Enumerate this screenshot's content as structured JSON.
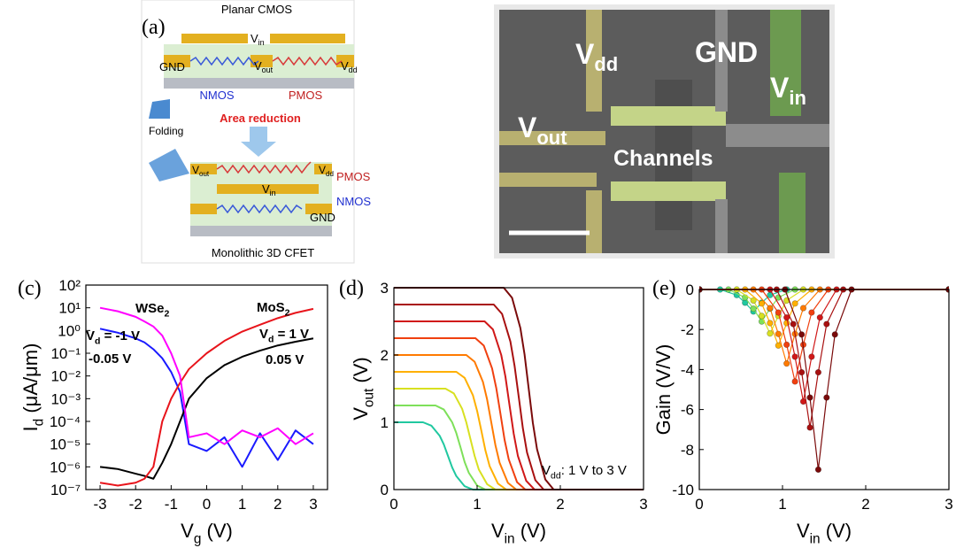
{
  "panel_a": {
    "label": "(a)",
    "title": "Planar CMOS",
    "planar": {
      "vin": [
        "V",
        "in"
      ],
      "gnd": "GND",
      "vout": [
        "V",
        "out"
      ],
      "vdd": [
        "V",
        "dd"
      ],
      "nmos": "NMOS",
      "pmos": "PMOS"
    },
    "arrow_label": "Area reduction",
    "folding": "Folding",
    "cfet": {
      "vout": [
        "V",
        "out"
      ],
      "vdd": [
        "V",
        "dd"
      ],
      "pmos": "PMOS",
      "vin": [
        "V",
        "in"
      ],
      "nmos": "NMOS",
      "gnd": "GND"
    },
    "caption": "Monolithic 3D CFET"
  },
  "panel_b": {
    "vdd": [
      "V",
      "dd"
    ],
    "gnd": "GND",
    "vin": [
      "V",
      "in"
    ],
    "vout": [
      "V",
      "out"
    ],
    "channels": "Channels"
  },
  "chart_data": [
    {
      "type": "line",
      "label": "(c)",
      "xlabel": [
        "V",
        "g",
        " (V)"
      ],
      "ylabel": [
        "I",
        "d",
        " (μA/μm)"
      ],
      "yscale": "log",
      "xlim": [
        -3.4,
        3.4
      ],
      "ylim": [
        1e-07,
        100
      ],
      "xticks": [
        -3,
        -2,
        -1,
        0,
        1,
        2,
        3
      ],
      "yticks": [
        {
          "value": 1e-07,
          "label": "10⁻⁷"
        },
        {
          "value": 1e-06,
          "label": "10⁻⁶"
        },
        {
          "value": 1e-05,
          "label": "10⁻⁵"
        },
        {
          "value": 0.0001,
          "label": "10⁻⁴"
        },
        {
          "value": 0.001,
          "label": "10⁻³"
        },
        {
          "value": 0.01,
          "label": "10⁻²"
        },
        {
          "value": 0.1,
          "label": "10⁻¹"
        },
        {
          "value": 1,
          "label": "10⁰"
        },
        {
          "value": 10,
          "label": "10¹"
        },
        {
          "value": 100,
          "label": "10²"
        }
      ],
      "x": [
        -3,
        -2.5,
        -2,
        -1.75,
        -1.5,
        -1.25,
        -1,
        -0.75,
        -0.5,
        0,
        0.5,
        1,
        1.5,
        2,
        2.5,
        3
      ],
      "series": [
        {
          "color": "#1a1aff",
          "values": [
            1.2,
            0.8,
            0.45,
            0.3,
            0.15,
            0.06,
            0.015,
            0.002,
            1e-05,
            5e-06,
            2e-05,
            1e-06,
            3e-05,
            2e-06,
            4e-05,
            1e-05
          ]
        },
        {
          "color": "#000000",
          "values": [
            1e-06,
            8e-07,
            5e-07,
            4e-07,
            3e-07,
            1.5e-06,
            1e-05,
            0.0001,
            0.001,
            0.008,
            0.03,
            0.07,
            0.13,
            0.22,
            0.32,
            0.45
          ]
        },
        {
          "color": "#e8141b",
          "values": [
            2e-07,
            1.5e-07,
            2e-07,
            3e-07,
            1e-06,
            0.0001,
            0.001,
            0.005,
            0.02,
            0.1,
            0.35,
            0.9,
            1.8,
            3.5,
            6,
            9
          ]
        },
        {
          "color": "#ff00ff",
          "values": [
            10,
            7,
            4,
            2.5,
            1.5,
            0.6,
            0.1,
            0.01,
            2e-05,
            3e-05,
            1e-05,
            4e-05,
            2e-05,
            5e-05,
            1e-05,
            3e-05
          ]
        }
      ],
      "annotations": [
        [
          "WSe",
          "2"
        ],
        [
          "MoS",
          "2"
        ],
        [
          "V",
          "d",
          " = -1 V"
        ],
        "-0.05 V",
        [
          "V",
          "d",
          " = 1 V"
        ],
        "0.05 V"
      ]
    },
    {
      "type": "line",
      "label": "(d)",
      "xlabel": [
        "V",
        "in",
        " (V)"
      ],
      "ylabel": [
        "V",
        "out",
        " (V)"
      ],
      "xlim": [
        0,
        3
      ],
      "ylim": [
        0,
        3
      ],
      "xticks": [
        0,
        1,
        2,
        3
      ],
      "yticks": [
        0,
        1,
        2,
        3
      ],
      "series": [
        {
          "color": "#20c8a0",
          "x": [
            0,
            0.35,
            0.45,
            0.55,
            0.6,
            0.65,
            0.7,
            0.75,
            0.85,
            0.95,
            3
          ],
          "values": [
            1,
            1,
            0.95,
            0.8,
            0.67,
            0.5,
            0.33,
            0.2,
            0.05,
            0,
            0
          ]
        },
        {
          "color": "#7ee05a",
          "x": [
            0,
            0.5,
            0.6,
            0.7,
            0.75,
            0.8,
            0.85,
            0.9,
            1,
            1.1,
            3
          ],
          "values": [
            1.25,
            1.25,
            1.19,
            1,
            0.84,
            0.63,
            0.41,
            0.25,
            0.06,
            0,
            0
          ]
        },
        {
          "color": "#d8e020",
          "x": [
            0,
            0.62,
            0.72,
            0.82,
            0.87,
            0.92,
            0.97,
            1.02,
            1.12,
            1.22,
            3
          ],
          "values": [
            1.5,
            1.5,
            1.43,
            1.2,
            1,
            0.75,
            0.5,
            0.3,
            0.08,
            0,
            0
          ]
        },
        {
          "color": "#ffb000",
          "x": [
            0,
            0.75,
            0.85,
            0.95,
            1,
            1.05,
            1.1,
            1.15,
            1.25,
            1.35,
            3
          ],
          "values": [
            1.75,
            1.75,
            1.66,
            1.4,
            1.17,
            0.88,
            0.58,
            0.35,
            0.09,
            0,
            0
          ]
        },
        {
          "color": "#ff7a00",
          "x": [
            0,
            0.87,
            0.97,
            1.07,
            1.12,
            1.17,
            1.22,
            1.27,
            1.37,
            1.47,
            3
          ],
          "values": [
            2,
            2,
            1.9,
            1.6,
            1.34,
            1,
            0.66,
            0.4,
            0.1,
            0,
            0
          ]
        },
        {
          "color": "#f04010",
          "x": [
            0,
            0.98,
            1.08,
            1.18,
            1.23,
            1.28,
            1.33,
            1.38,
            1.48,
            1.58,
            3
          ],
          "values": [
            2.25,
            2.25,
            2.14,
            1.8,
            1.51,
            1.13,
            0.74,
            0.45,
            0.11,
            0,
            0
          ]
        },
        {
          "color": "#d01818",
          "x": [
            0,
            1.09,
            1.19,
            1.29,
            1.34,
            1.39,
            1.44,
            1.49,
            1.59,
            1.69,
            3
          ],
          "values": [
            2.5,
            2.5,
            2.38,
            2,
            1.68,
            1.25,
            0.83,
            0.5,
            0.13,
            0,
            0
          ]
        },
        {
          "color": "#a81010",
          "x": [
            0,
            1.2,
            1.3,
            1.4,
            1.45,
            1.5,
            1.55,
            1.6,
            1.7,
            1.8,
            3
          ],
          "values": [
            2.75,
            2.75,
            2.61,
            2.2,
            1.84,
            1.38,
            0.91,
            0.55,
            0.14,
            0,
            0
          ]
        },
        {
          "color": "#7a0a0a",
          "x": [
            0,
            1.32,
            1.42,
            1.52,
            1.57,
            1.62,
            1.67,
            1.72,
            1.82,
            1.92,
            3
          ],
          "values": [
            3,
            3,
            2.85,
            2.4,
            2.01,
            1.5,
            0.99,
            0.6,
            0.15,
            0,
            0
          ]
        }
      ],
      "annotations": [
        [
          "V",
          "dd",
          ":  1 V to 3 V"
        ]
      ]
    },
    {
      "type": "line",
      "markers": true,
      "label": "(e)",
      "xlabel": [
        "V",
        "in",
        " (V)"
      ],
      "ylabel": "Gain (V/V)",
      "xlim": [
        0,
        3
      ],
      "ylim": [
        -10,
        0
      ],
      "xticks": [
        0,
        1,
        2,
        3
      ],
      "yticks": [
        -10,
        -8,
        -6,
        -4,
        -2,
        0
      ],
      "series": [
        {
          "color": "#20c8a0",
          "x": [
            0,
            0.25,
            0.45,
            0.55,
            0.65,
            0.75,
            0.85,
            1.05,
            3
          ],
          "values": [
            0,
            0,
            -0.28,
            -0.66,
            -1.1,
            -0.66,
            -0.28,
            0,
            0
          ]
        },
        {
          "color": "#7ee05a",
          "x": [
            0,
            0.35,
            0.55,
            0.65,
            0.75,
            0.85,
            0.95,
            1.15,
            3
          ],
          "values": [
            0,
            0,
            -0.4,
            -0.96,
            -1.6,
            -0.96,
            -0.4,
            0,
            0
          ]
        },
        {
          "color": "#d8e020",
          "x": [
            0,
            0.45,
            0.65,
            0.75,
            0.85,
            0.95,
            1.05,
            1.25,
            3
          ],
          "values": [
            0,
            0,
            -0.55,
            -1.32,
            -2.2,
            -1.32,
            -0.55,
            0,
            0
          ]
        },
        {
          "color": "#ffb000",
          "x": [
            0,
            0.55,
            0.75,
            0.85,
            0.95,
            1.05,
            1.15,
            1.35,
            3
          ],
          "values": [
            0,
            0,
            -0.7,
            -1.68,
            -2.8,
            -1.68,
            -0.7,
            0,
            0
          ]
        },
        {
          "color": "#ff7a00",
          "x": [
            0,
            0.65,
            0.85,
            0.95,
            1.05,
            1.15,
            1.25,
            1.45,
            3
          ],
          "values": [
            0,
            0,
            -0.93,
            -2.22,
            -3.7,
            -2.22,
            -0.93,
            0,
            0
          ]
        },
        {
          "color": "#f04010",
          "x": [
            0,
            0.75,
            0.95,
            1.05,
            1.15,
            1.25,
            1.35,
            1.55,
            3
          ],
          "values": [
            0,
            0,
            -1.15,
            -2.76,
            -4.6,
            -2.76,
            -1.15,
            0,
            0
          ]
        },
        {
          "color": "#d01818",
          "x": [
            0,
            0.85,
            1.05,
            1.15,
            1.25,
            1.35,
            1.45,
            1.65,
            3
          ],
          "values": [
            0,
            0,
            -1.4,
            -3.36,
            -5.6,
            -3.36,
            -1.4,
            0,
            0
          ]
        },
        {
          "color": "#a81010",
          "x": [
            0,
            0.93,
            1.13,
            1.23,
            1.33,
            1.43,
            1.53,
            1.73,
            3
          ],
          "values": [
            0,
            0,
            -1.73,
            -4.14,
            -6.9,
            -4.14,
            -1.73,
            0,
            0
          ]
        },
        {
          "color": "#7a0a0a",
          "x": [
            0,
            1.03,
            1.23,
            1.33,
            1.43,
            1.53,
            1.63,
            1.83,
            3
          ],
          "values": [
            0,
            0,
            -2.25,
            -5.4,
            -9,
            -5.4,
            -2.25,
            0,
            0
          ]
        }
      ]
    }
  ]
}
